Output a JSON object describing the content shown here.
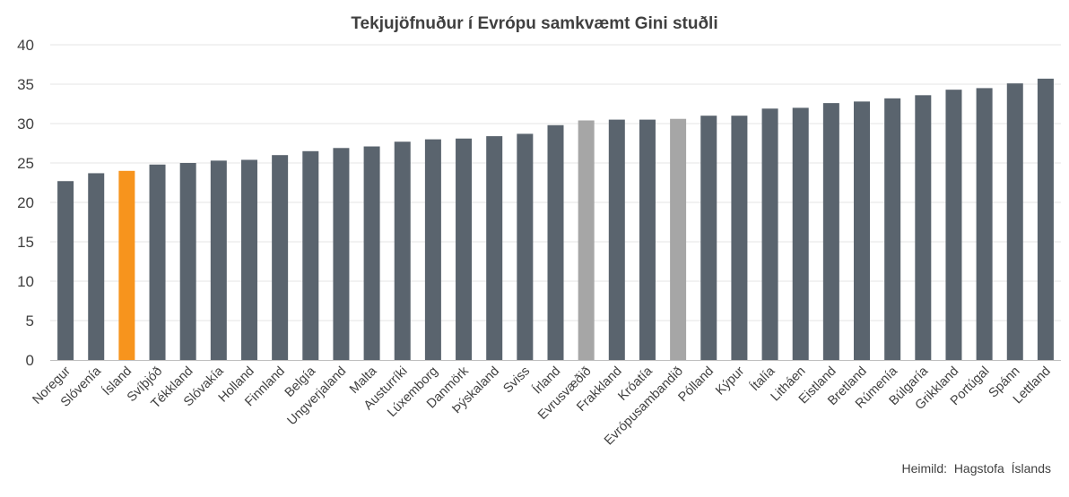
{
  "chart_data": {
    "type": "bar",
    "title": "Tekjujöfnuður í Evrópu samkvæmt Gini stuðli",
    "xlabel": "",
    "ylabel": "",
    "ylim": [
      0,
      40
    ],
    "yticks": [
      0,
      5,
      10,
      15,
      20,
      25,
      30,
      35,
      40
    ],
    "grid": true,
    "categories": [
      "Noregur",
      "Slóvenía",
      "Ísland",
      "Svíþjóð",
      "Tékkland",
      "Slóvakía",
      "Holland",
      "Finnland",
      "Belgía",
      "Ungverjaland",
      "Malta",
      "Austurríki",
      "Lúxemborg",
      "Danmörk",
      "Þýskaland",
      "Sviss",
      "Írland",
      "Evrusvæðið",
      "Frakkland",
      "Króatía",
      "Evrópusambandið",
      "Pólland",
      "Kýpur",
      "Ítalía",
      "Litháen",
      "Eistland",
      "Bretland",
      "Rúmenía",
      "Búlgaría",
      "Grikkland",
      "Portúgal",
      "Spánn",
      "Lettland"
    ],
    "values": [
      22.7,
      23.7,
      24.0,
      24.8,
      25.0,
      25.3,
      25.4,
      26.0,
      26.5,
      26.9,
      27.1,
      27.7,
      28.0,
      28.1,
      28.4,
      28.7,
      29.8,
      30.4,
      30.5,
      30.5,
      30.6,
      31.0,
      31.0,
      31.9,
      32.0,
      32.6,
      32.8,
      33.2,
      33.6,
      34.3,
      34.5,
      35.1,
      35.7
    ],
    "colors": {
      "default": "#5a646e",
      "highlight": "#f7941d",
      "aggregate": "#a6a6a6",
      "grid": "#e6e6e6",
      "axis": "#bfbfbf"
    },
    "highlight": [
      "Ísland"
    ],
    "aggregates": [
      "Evrusvæðið",
      "Evrópusambandið"
    ]
  },
  "source_note": "Heimild:  Hagstofa  Íslands"
}
